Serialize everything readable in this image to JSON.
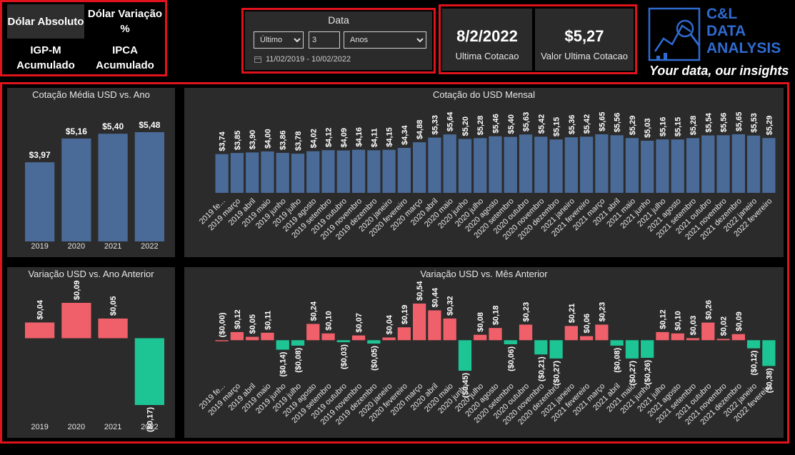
{
  "nav": {
    "buttons": [
      {
        "label": "Dólar Absoluto",
        "active": true
      },
      {
        "label": "Dólar Variação %",
        "active": false
      },
      {
        "label": "IGP-M Acumulado",
        "active": false
      },
      {
        "label": "IPCA Acumulado",
        "active": false
      }
    ]
  },
  "filter": {
    "title": "Data",
    "mode": "Último",
    "count": "3",
    "unit": "Anos",
    "range": "11/02/2019 - 10/02/2022"
  },
  "kpis": [
    {
      "value": "8/2/2022",
      "label": "Ultima Cotacao"
    },
    {
      "value": "$5,27",
      "label": "Valor Ultima Cotacao"
    }
  ],
  "logo": {
    "line1": "C&L",
    "line2": "DATA",
    "line3": "ANALYSIS",
    "tagline": "Your data, our insights"
  },
  "colors": {
    "bar_blue": "#4a6a97",
    "positive": "#f0606a",
    "negative": "#1dc595",
    "frame": "#e0131c",
    "panel": "#2b2b2b"
  },
  "chart_data": [
    {
      "id": "annual-avg",
      "type": "bar",
      "title": "Cotação Média USD vs. Ano",
      "categories": [
        "2019",
        "2020",
        "2021",
        "2022"
      ],
      "values": [
        3.97,
        5.16,
        5.4,
        5.48
      ],
      "labels": [
        "$3,97",
        "$5,16",
        "$5,40",
        "$5,48"
      ],
      "ylim": [
        0,
        5.48
      ]
    },
    {
      "id": "monthly-avg",
      "type": "bar",
      "title": "Cotação do USD Mensal",
      "categories": [
        "2019 fe...",
        "2019 março",
        "2019 abril",
        "2019 maio",
        "2019 junho",
        "2019 julho",
        "2019 agosto",
        "2019 setembro",
        "2019 outubro",
        "2019 novembro",
        "2019 dezembro",
        "2020 janeiro",
        "2020 fevereiro",
        "2020 março",
        "2020 abril",
        "2020 maio",
        "2020 junho",
        "2020 julho",
        "2020 agosto",
        "2020 setembro",
        "2020 outubro",
        "2020 novembro",
        "2020 dezembro",
        "2021 janeiro",
        "2021 fevereiro",
        "2021 março",
        "2021 abril",
        "2021 maio",
        "2021 junho",
        "2021 julho",
        "2021 agosto",
        "2021 setembro",
        "2021 outubro",
        "2021 novembro",
        "2021 dezembro",
        "2022 janeiro",
        "2022 fevereiro"
      ],
      "values": [
        3.74,
        3.85,
        3.9,
        4.0,
        3.86,
        3.78,
        4.02,
        4.12,
        4.09,
        4.16,
        4.11,
        4.15,
        4.34,
        4.88,
        5.33,
        5.64,
        5.2,
        5.28,
        5.46,
        5.4,
        5.63,
        5.42,
        5.15,
        5.36,
        5.42,
        5.65,
        5.56,
        5.29,
        5.03,
        5.16,
        5.15,
        5.28,
        5.54,
        5.56,
        5.65,
        5.53,
        5.29
      ],
      "labels": [
        "$3,74",
        "$3,85",
        "$3,90",
        "$4,00",
        "$3,86",
        "$3,78",
        "$4,02",
        "$4,12",
        "$4,09",
        "$4,16",
        "$4,11",
        "$4,15",
        "$4,34",
        "$4,88",
        "$5,33",
        "$5,64",
        "$5,20",
        "$5,28",
        "$5,46",
        "$5,40",
        "$5,63",
        "$5,42",
        "$5,15",
        "$5,36",
        "$5,42",
        "$5,65",
        "$5,56",
        "$5,29",
        "$5,03",
        "$5,16",
        "$5,15",
        "$5,28",
        "$5,54",
        "$5,56",
        "$5,65",
        "$5,53",
        "$5,29"
      ],
      "ylim": [
        0,
        5.65
      ]
    },
    {
      "id": "annual-var",
      "type": "bar",
      "title": "Variação USD vs. Ano Anterior",
      "categories": [
        "2019",
        "2020",
        "2021",
        "2022"
      ],
      "values": [
        0.04,
        0.09,
        0.05,
        -0.17
      ],
      "labels": [
        "$0,04",
        "$0,09",
        "$0,05",
        "($0,17)"
      ],
      "ylim": [
        -0.17,
        0.09
      ]
    },
    {
      "id": "monthly-var",
      "type": "bar",
      "title": "Variação USD vs. Mês Anterior",
      "categories": [
        "2019 fe...",
        "2019 março",
        "2019 abril",
        "2019 maio",
        "2019 junho",
        "2019 julho",
        "2019 agosto",
        "2019 setembro",
        "2019 outubro",
        "2019 novembro",
        "2019 dezembro",
        "2020 janeiro",
        "2020 fevereiro",
        "2020 março",
        "2020 abril",
        "2020 maio",
        "2020 junho",
        "2020 julho",
        "2020 agosto",
        "2020 setembro",
        "2020 outubro",
        "2020 novembro",
        "2020 dezembro",
        "2021 janeiro",
        "2021 fevereiro",
        "2021 março",
        "2021 abril",
        "2021 maio",
        "2021 junho",
        "2021 julho",
        "2021 agosto",
        "2021 setembro",
        "2021 outubro",
        "2021 novembro",
        "2021 dezembro",
        "2022 janeiro",
        "2022 fevereiro"
      ],
      "values": [
        0.0,
        0.12,
        0.05,
        0.11,
        -0.14,
        -0.08,
        0.24,
        0.1,
        -0.03,
        0.07,
        -0.05,
        0.04,
        0.19,
        0.54,
        0.44,
        0.32,
        -0.45,
        0.08,
        0.18,
        -0.06,
        0.23,
        -0.21,
        -0.27,
        0.21,
        0.06,
        0.23,
        -0.08,
        -0.27,
        -0.26,
        0.12,
        0.1,
        0.03,
        0.26,
        0.02,
        0.09,
        -0.12,
        -0.38
      ],
      "labels": [
        "($0,00)",
        "$0,12",
        "$0,05",
        "$0,11",
        "($0,14)",
        "($0,08)",
        "$0,24",
        "$0,10",
        "($0,03)",
        "$0,07",
        "($0,05)",
        "$0,04",
        "$0,19",
        "$0,54",
        "$0,44",
        "$0,32",
        "($0,45)",
        "$0,08",
        "$0,18",
        "($0,06)",
        "$0,23",
        "($0,21)",
        "($0,27)",
        "$0,21",
        "$0,06",
        "$0,23",
        "($0,08)",
        "($0,27)",
        "($0,26)",
        "$0,12",
        "$0,10",
        "$0,03",
        "$0,26",
        "$0,02",
        "$0,09",
        "($0,12)",
        "($0,38)"
      ],
      "ylim": [
        -0.45,
        0.54
      ]
    }
  ]
}
